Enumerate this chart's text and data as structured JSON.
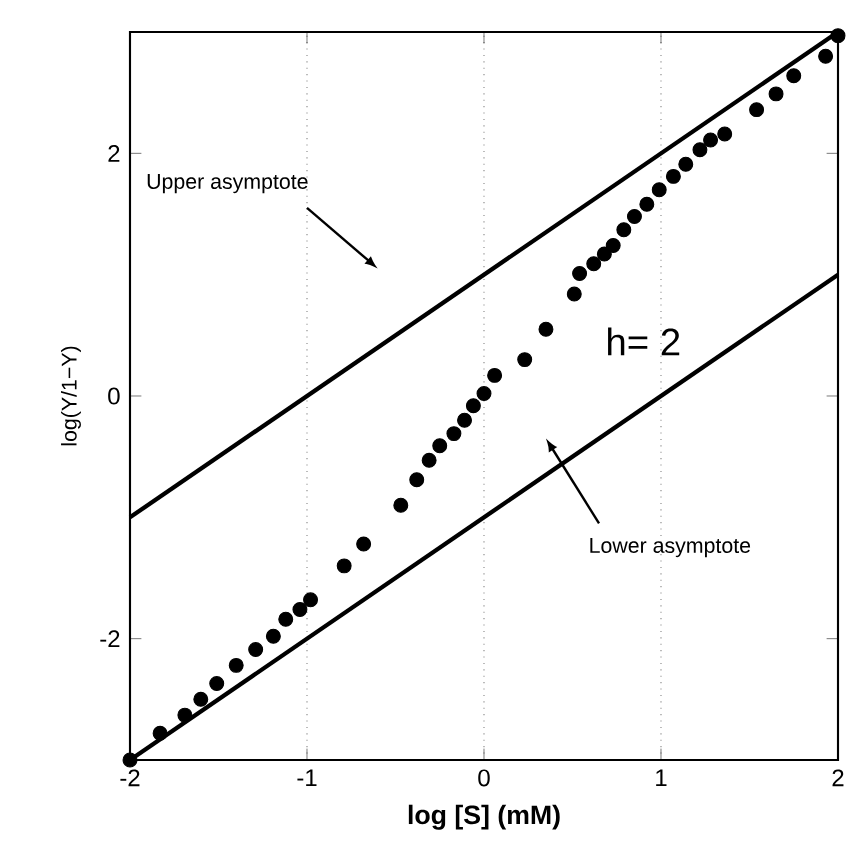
{
  "chart_data": {
    "type": "scatter",
    "xlabel": "log [S] (mM)",
    "ylabel": "log(Y/1−Y)",
    "xlim": [
      -2,
      2
    ],
    "ylim": [
      -3,
      3
    ],
    "xticks": [
      -2,
      -1,
      0,
      1,
      2
    ],
    "yticks": [
      -2,
      0,
      2
    ],
    "grid": "x",
    "annotations": [
      "Upper asymptote",
      "Lower asymptote",
      "h= 2"
    ],
    "series": [
      {
        "type": "line",
        "color": "#000000",
        "marker": "none",
        "x": [
          -2,
          2
        ],
        "values": [
          -1,
          3
        ]
      },
      {
        "type": "line",
        "color": "#000000",
        "marker": "none",
        "x": [
          -2,
          2
        ],
        "values": [
          -3,
          1
        ]
      },
      {
        "color": "#000000",
        "marker": "circle",
        "x": [
          -2.0,
          -1.83,
          -1.69,
          -1.6,
          -1.51,
          -1.4,
          -1.29,
          -1.19,
          -1.12,
          -1.04,
          -0.98,
          -0.79,
          -0.68,
          -0.47,
          -0.38,
          -0.31,
          -0.25,
          -0.17,
          -0.11,
          -0.06,
          0.0,
          0.06,
          0.23,
          0.35,
          0.51,
          0.54,
          0.62,
          0.68,
          0.73,
          0.79,
          0.85,
          0.92,
          0.99,
          1.07,
          1.14,
          1.22,
          1.28,
          1.36,
          1.54,
          1.65,
          1.75,
          1.93,
          2.0
        ],
        "values": [
          -3.0,
          -2.78,
          -2.63,
          -2.5,
          -2.37,
          -2.22,
          -2.09,
          -1.98,
          -1.84,
          -1.76,
          -1.68,
          -1.4,
          -1.22,
          -0.9,
          -0.69,
          -0.53,
          -0.41,
          -0.31,
          -0.2,
          -0.08,
          0.02,
          0.17,
          0.3,
          0.55,
          0.84,
          1.01,
          1.09,
          1.17,
          1.24,
          1.37,
          1.48,
          1.58,
          1.7,
          1.81,
          1.91,
          2.03,
          2.11,
          2.16,
          2.36,
          2.49,
          2.64,
          2.8,
          2.97
        ]
      }
    ]
  }
}
